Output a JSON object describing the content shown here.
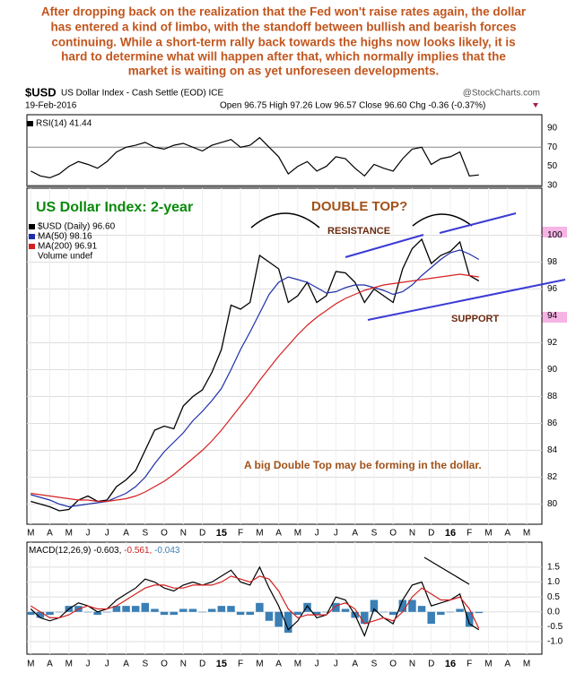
{
  "commentary": [
    "After dropping back on the realization that the Fed won't raise rates again, the dollar",
    "has entered a kind of limbo, with the standoff between bullish and bearish forces",
    "continuing. While a short-term rally back towards the highs now looks likely, it is",
    "hard to determine what will happen after that, which normally implies that the",
    "market is waiting on as yet unforeseen developments."
  ],
  "header": {
    "symbol": "$USD",
    "name": "US Dollar Index - Cash Settle (EOD) ICE",
    "source": "@StockCharts.com",
    "date": "19-Feb-2016",
    "quote": "Open 96.75  High 97.26  Low 96.57  Close 96.60  Chg -0.36 (-0.37%)"
  },
  "chart_data": [
    {
      "type": "line",
      "ylim": [
        29,
        104
      ],
      "yticks": [
        30,
        50,
        70,
        90
      ],
      "grid_values": [
        30,
        70
      ],
      "xlim": [
        -0.2,
        26.8
      ],
      "x": [
        0,
        0.5,
        1,
        1.5,
        2,
        2.5,
        3,
        3.5,
        4,
        4.5,
        5,
        5.5,
        6,
        6.5,
        7,
        7.5,
        8,
        8.5,
        9,
        9.5,
        10,
        10.5,
        11,
        11.5,
        12,
        12.5,
        13,
        13.5,
        14,
        14.5,
        15,
        15.5,
        16,
        16.5,
        17,
        17.5,
        18,
        18.5,
        19,
        19.5,
        20,
        20.5,
        21,
        21.5,
        22,
        22.5,
        23,
        23.5
      ],
      "series": [
        {
          "name": "RSI(14) 41.44",
          "color": "#000000",
          "values": [
            45,
            40,
            38,
            42,
            50,
            55,
            52,
            48,
            55,
            65,
            70,
            72,
            75,
            70,
            68,
            72,
            74,
            70,
            66,
            72,
            75,
            78,
            70,
            72,
            80,
            70,
            60,
            42,
            50,
            55,
            45,
            50,
            60,
            58,
            48,
            40,
            52,
            48,
            45,
            58,
            68,
            70,
            52,
            58,
            60,
            65,
            40,
            41
          ]
        }
      ]
    },
    {
      "type": "line",
      "title": "US Dollar Index: 2-year",
      "annotations": [
        "DOUBLE TOP?",
        "RESISTANCE",
        "SUPPORT",
        "A big Double Top may be forming in the dollar."
      ],
      "volume_note": "Volume undef",
      "ylim": [
        78.5,
        103.5
      ],
      "yticks": [
        80,
        82,
        84,
        86,
        88,
        90,
        92,
        94,
        96,
        98,
        100
      ],
      "grid": true,
      "xlim": [
        -0.2,
        26.8
      ],
      "xticks": [
        {
          "value": 0,
          "label": "M"
        },
        {
          "value": 1,
          "label": "A"
        },
        {
          "value": 2,
          "label": "M"
        },
        {
          "value": 3,
          "label": "J"
        },
        {
          "value": 4,
          "label": "J"
        },
        {
          "value": 5,
          "label": "A"
        },
        {
          "value": 6,
          "label": "S"
        },
        {
          "value": 7,
          "label": "O"
        },
        {
          "value": 8,
          "label": "N"
        },
        {
          "value": 9,
          "label": "D"
        },
        {
          "value": 10,
          "label": "15"
        },
        {
          "value": 11,
          "label": "F"
        },
        {
          "value": 12,
          "label": "M"
        },
        {
          "value": 13,
          "label": "A"
        },
        {
          "value": 14,
          "label": "M"
        },
        {
          "value": 15,
          "label": "J"
        },
        {
          "value": 16,
          "label": "J"
        },
        {
          "value": 17,
          "label": "A"
        },
        {
          "value": 18,
          "label": "S"
        },
        {
          "value": 19,
          "label": "O"
        },
        {
          "value": 20,
          "label": "N"
        },
        {
          "value": 21,
          "label": "D"
        },
        {
          "value": 22,
          "label": "16"
        },
        {
          "value": 23,
          "label": "F"
        },
        {
          "value": 24,
          "label": "M"
        },
        {
          "value": 25,
          "label": "A"
        },
        {
          "value": 26,
          "label": "M"
        }
      ],
      "x": [
        0,
        0.5,
        1,
        1.5,
        2,
        2.5,
        3,
        3.5,
        4,
        4.5,
        5,
        5.5,
        6,
        6.5,
        7,
        7.5,
        8,
        8.5,
        9,
        9.5,
        10,
        10.5,
        11,
        11.5,
        12,
        12.5,
        13,
        13.5,
        14,
        14.5,
        15,
        15.5,
        16,
        16.5,
        17,
        17.5,
        18,
        18.5,
        19,
        19.5,
        20,
        20.5,
        21,
        21.5,
        22,
        22.5,
        23,
        23.5
      ],
      "series": [
        {
          "name": "$USD (Daily) 96.60",
          "color": "#000000",
          "values": [
            80.2,
            80.0,
            79.8,
            79.5,
            79.6,
            80.3,
            80.6,
            80.2,
            80.3,
            81.3,
            81.8,
            82.5,
            84.0,
            85.5,
            85.8,
            85.6,
            87.3,
            88.0,
            88.5,
            89.8,
            91.5,
            94.8,
            94.5,
            95.0,
            98.5,
            98.0,
            97.5,
            95.0,
            95.5,
            96.5,
            95.0,
            95.5,
            97.3,
            97.2,
            96.5,
            95.0,
            96.0,
            95.5,
            95.0,
            97.5,
            99.0,
            99.7,
            97.9,
            98.5,
            98.8,
            99.5,
            97.0,
            96.6
          ]
        },
        {
          "name": "MA(50) 98.16",
          "color": "#1f2fa8",
          "values": [
            80.7,
            80.5,
            80.3,
            80.0,
            79.8,
            79.9,
            80.0,
            80.1,
            80.2,
            80.5,
            80.8,
            81.3,
            82.0,
            83.0,
            83.9,
            84.6,
            85.3,
            86.2,
            86.9,
            87.7,
            88.6,
            90.0,
            91.5,
            92.8,
            94.2,
            95.6,
            96.5,
            96.9,
            96.7,
            96.5,
            96.1,
            95.7,
            95.8,
            96.1,
            96.3,
            96.3,
            96.1,
            95.9,
            95.6,
            95.8,
            96.3,
            97.0,
            97.6,
            98.2,
            98.7,
            98.9,
            98.6,
            98.2
          ]
        },
        {
          "name": "MA(200) 96.91",
          "color": "#d42020",
          "values": [
            80.8,
            80.7,
            80.6,
            80.5,
            80.4,
            80.3,
            80.3,
            80.2,
            80.2,
            80.3,
            80.4,
            80.6,
            80.9,
            81.3,
            81.7,
            82.2,
            82.8,
            83.4,
            84.0,
            84.7,
            85.5,
            86.4,
            87.3,
            88.2,
            89.2,
            90.1,
            91.0,
            91.8,
            92.6,
            93.3,
            93.9,
            94.4,
            94.9,
            95.3,
            95.6,
            95.9,
            96.1,
            96.3,
            96.4,
            96.5,
            96.6,
            96.7,
            96.8,
            96.9,
            97.0,
            97.1,
            97.0,
            96.9
          ]
        }
      ]
    },
    {
      "type": "line",
      "ylim": [
        -1.42,
        2.34
      ],
      "yticks": [
        {
          "value": -1,
          "label": "-1.0"
        },
        -0.5,
        {
          "value": 0,
          "label": "0.0"
        },
        0.5,
        {
          "value": 1,
          "label": "1.0"
        },
        1.5
      ],
      "grid": true,
      "xlim": [
        -0.2,
        26.8
      ],
      "xticks": [
        {
          "value": 0,
          "label": "M"
        },
        {
          "value": 1,
          "label": "A"
        },
        {
          "value": 2,
          "label": "M"
        },
        {
          "value": 3,
          "label": "J"
        },
        {
          "value": 4,
          "label": "J"
        },
        {
          "value": 5,
          "label": "A"
        },
        {
          "value": 6,
          "label": "S"
        },
        {
          "value": 7,
          "label": "O"
        },
        {
          "value": 8,
          "label": "N"
        },
        {
          "value": 9,
          "label": "D"
        },
        {
          "value": 10,
          "label": "15"
        },
        {
          "value": 11,
          "label": "F"
        },
        {
          "value": 12,
          "label": "M"
        },
        {
          "value": 13,
          "label": "A"
        },
        {
          "value": 14,
          "label": "M"
        },
        {
          "value": 15,
          "label": "J"
        },
        {
          "value": 16,
          "label": "J"
        },
        {
          "value": 17,
          "label": "A"
        },
        {
          "value": 18,
          "label": "S"
        },
        {
          "value": 19,
          "label": "O"
        },
        {
          "value": 20,
          "label": "N"
        },
        {
          "value": 21,
          "label": "D"
        },
        {
          "value": 22,
          "label": "16"
        },
        {
          "value": 23,
          "label": "F"
        },
        {
          "value": 24,
          "label": "M"
        },
        {
          "value": 25,
          "label": "A"
        },
        {
          "value": 26,
          "label": "M"
        }
      ],
      "x": [
        0,
        0.5,
        1,
        1.5,
        2,
        2.5,
        3,
        3.5,
        4,
        4.5,
        5,
        5.5,
        6,
        6.5,
        7,
        7.5,
        8,
        8.5,
        9,
        9.5,
        10,
        10.5,
        11,
        11.5,
        12,
        12.5,
        13,
        13.5,
        14,
        14.5,
        15,
        15.5,
        16,
        16.5,
        17,
        17.5,
        18,
        18.5,
        19,
        19.5,
        20,
        20.5,
        21,
        21.5,
        22,
        22.5,
        23,
        23.5
      ],
      "series": [
        {
          "name": "-0.043",
          "color": "#3a7fb5",
          "type": "bar",
          "values": [
            -0.1,
            -0.2,
            -0.1,
            0.0,
            0.2,
            0.2,
            0.0,
            -0.1,
            0.0,
            0.2,
            0.2,
            0.2,
            0.3,
            0.1,
            -0.1,
            -0.1,
            0.1,
            0.1,
            0.0,
            0.1,
            0.2,
            0.2,
            -0.1,
            -0.1,
            0.3,
            -0.3,
            -0.5,
            -0.7,
            -0.1,
            0.3,
            -0.1,
            0.0,
            0.3,
            0.1,
            -0.2,
            -0.4,
            0.4,
            0.0,
            -0.1,
            0.4,
            0.4,
            0.2,
            -0.4,
            -0.1,
            0.0,
            0.1,
            -0.5,
            -0.04
          ]
        },
        {
          "name": "MACD(12,26,9) -0.603,",
          "color": "#000000",
          "values": [
            0.1,
            -0.2,
            -0.3,
            -0.2,
            0.1,
            0.3,
            0.2,
            0.0,
            0.1,
            0.4,
            0.6,
            0.8,
            1.1,
            1.0,
            0.8,
            0.7,
            0.9,
            1.0,
            0.9,
            1.0,
            1.2,
            1.4,
            1.0,
            0.9,
            1.5,
            0.8,
            0.2,
            -0.6,
            -0.3,
            0.2,
            -0.2,
            -0.1,
            0.5,
            0.4,
            -0.1,
            -0.8,
            0.1,
            -0.2,
            -0.4,
            0.4,
            0.9,
            1.0,
            0.2,
            0.3,
            0.4,
            0.6,
            -0.4,
            -0.6
          ]
        },
        {
          "name": "-0.561,",
          "color": "#d42020",
          "values": [
            0.2,
            0.0,
            -0.2,
            -0.2,
            -0.1,
            0.1,
            0.2,
            0.1,
            0.1,
            0.2,
            0.4,
            0.6,
            0.8,
            0.9,
            0.9,
            0.8,
            0.8,
            0.9,
            0.9,
            0.9,
            1.0,
            1.2,
            1.1,
            1.0,
            1.2,
            1.1,
            0.7,
            0.1,
            -0.2,
            -0.1,
            -0.1,
            -0.1,
            0.2,
            0.3,
            0.1,
            -0.4,
            -0.3,
            -0.2,
            -0.3,
            0.0,
            0.5,
            0.8,
            0.6,
            0.4,
            0.4,
            0.5,
            0.1,
            -0.56
          ]
        }
      ]
    }
  ]
}
